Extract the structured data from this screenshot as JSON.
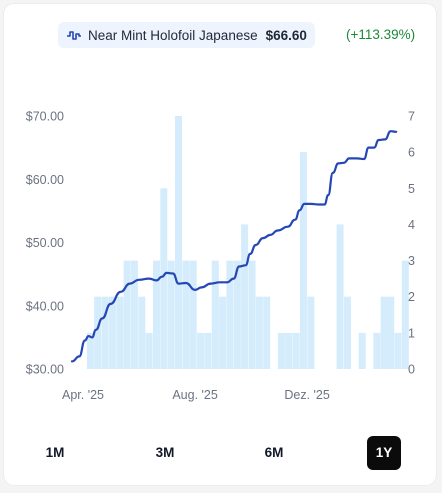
{
  "legend": {
    "icon": "chart-step-icon",
    "label": "Near Mint Holofoil Japanese",
    "price": "$66.60",
    "change": "(+113.39%)",
    "line_color": "#2447b5",
    "change_color": "#1b8a3a"
  },
  "ranges": {
    "items": [
      "1M",
      "3M",
      "6M",
      "1Y"
    ],
    "active": "1Y"
  },
  "chart_data": {
    "type": "line",
    "title": "",
    "x_axis": {
      "type": "time",
      "range": [
        "2025-03-20",
        "2026-03-10"
      ],
      "ticks": [
        {
          "label": "Apr. '25",
          "x": "2025-04-01"
        },
        {
          "label": "Aug. '25",
          "x": "2025-08-01"
        },
        {
          "label": "Dez. '25",
          "x": "2025-12-01"
        }
      ]
    },
    "y_left": {
      "range": [
        30,
        70
      ],
      "ticks": [
        "$30.00",
        "$40.00",
        "$50.00",
        "$60.00",
        "$70.00"
      ],
      "tick_values": [
        30,
        40,
        50,
        60,
        70
      ]
    },
    "y_right": {
      "range": [
        0,
        7
      ],
      "ticks": [
        "0",
        "1",
        "2",
        "3",
        "4",
        "5",
        "6",
        "7"
      ],
      "tick_values": [
        0,
        1,
        2,
        3,
        4,
        5,
        6,
        7
      ]
    },
    "grid": false,
    "series": [
      {
        "type": "line",
        "axis": "left",
        "color": "#2447b5",
        "points": [
          [
            "2025-03-20",
            31.2
          ],
          [
            "2025-03-28",
            32.0
          ],
          [
            "2025-04-03",
            34.5
          ],
          [
            "2025-04-07",
            35.2
          ],
          [
            "2025-04-11",
            35.0
          ],
          [
            "2025-04-15",
            36.2
          ],
          [
            "2025-04-22",
            38.0
          ],
          [
            "2025-05-01",
            40.3
          ],
          [
            "2025-05-12",
            42.2
          ],
          [
            "2025-05-22",
            43.5
          ],
          [
            "2025-06-01",
            44.1
          ],
          [
            "2025-06-12",
            44.3
          ],
          [
            "2025-06-20",
            44.0
          ],
          [
            "2025-06-26",
            44.6
          ],
          [
            "2025-07-01",
            45.2
          ],
          [
            "2025-07-08",
            45.1
          ],
          [
            "2025-07-14",
            43.5
          ],
          [
            "2025-07-22",
            43.6
          ],
          [
            "2025-08-01",
            42.5
          ],
          [
            "2025-08-08",
            42.9
          ],
          [
            "2025-08-18",
            43.5
          ],
          [
            "2025-08-28",
            43.7
          ],
          [
            "2025-09-05",
            43.7
          ],
          [
            "2025-09-12",
            44.3
          ],
          [
            "2025-09-18",
            46.2
          ],
          [
            "2025-09-25",
            46.4
          ],
          [
            "2025-09-30",
            48.2
          ],
          [
            "2025-10-06",
            49.6
          ],
          [
            "2025-10-14",
            50.7
          ],
          [
            "2025-10-22",
            51.2
          ],
          [
            "2025-10-30",
            51.9
          ],
          [
            "2025-11-10",
            52.5
          ],
          [
            "2025-11-18",
            53.6
          ],
          [
            "2025-11-23",
            55.1
          ],
          [
            "2025-11-28",
            56.1
          ],
          [
            "2025-12-05",
            56.1
          ],
          [
            "2025-12-14",
            56.0
          ],
          [
            "2025-12-20",
            56.0
          ],
          [
            "2025-12-24",
            57.5
          ],
          [
            "2025-12-29",
            61.0
          ],
          [
            "2026-01-04",
            62.5
          ],
          [
            "2026-01-10",
            62.6
          ],
          [
            "2026-01-16",
            63.3
          ],
          [
            "2026-01-24",
            63.3
          ],
          [
            "2026-02-01",
            63.2
          ],
          [
            "2026-02-06",
            65.0
          ],
          [
            "2026-02-12",
            65.0
          ],
          [
            "2026-02-17",
            66.2
          ],
          [
            "2026-02-24",
            66.3
          ],
          [
            "2026-03-02",
            67.6
          ],
          [
            "2026-03-08",
            67.5
          ]
        ]
      },
      {
        "type": "bar",
        "axis": "right",
        "color": "#d4ecfb",
        "points": [
          [
            "2025-04-09",
            1
          ],
          [
            "2025-04-17",
            2
          ],
          [
            "2025-04-25",
            2
          ],
          [
            "2025-05-03",
            2
          ],
          [
            "2025-05-11",
            2
          ],
          [
            "2025-05-19",
            3
          ],
          [
            "2025-05-27",
            3
          ],
          [
            "2025-06-04",
            2
          ],
          [
            "2025-06-12",
            1
          ],
          [
            "2025-06-20",
            3
          ],
          [
            "2025-06-28",
            5
          ],
          [
            "2025-07-06",
            3
          ],
          [
            "2025-07-14",
            7
          ],
          [
            "2025-07-22",
            3
          ],
          [
            "2025-07-30",
            3
          ],
          [
            "2025-08-07",
            1
          ],
          [
            "2025-08-15",
            1
          ],
          [
            "2025-08-23",
            3
          ],
          [
            "2025-08-31",
            2
          ],
          [
            "2025-09-08",
            3
          ],
          [
            "2025-09-16",
            3
          ],
          [
            "2025-09-24",
            4
          ],
          [
            "2025-10-02",
            3
          ],
          [
            "2025-10-10",
            2
          ],
          [
            "2025-10-18",
            2
          ],
          [
            "2025-11-03",
            1
          ],
          [
            "2025-11-11",
            1
          ],
          [
            "2025-11-19",
            1
          ],
          [
            "2025-11-27",
            6
          ],
          [
            "2025-12-05",
            2
          ],
          [
            "2026-01-06",
            4
          ],
          [
            "2026-01-14",
            2
          ],
          [
            "2026-01-30",
            1
          ],
          [
            "2026-02-15",
            1
          ],
          [
            "2026-02-23",
            2
          ],
          [
            "2026-03-02",
            2
          ],
          [
            "2026-03-10",
            1
          ],
          [
            "2026-03-18",
            3
          ]
        ]
      }
    ]
  }
}
